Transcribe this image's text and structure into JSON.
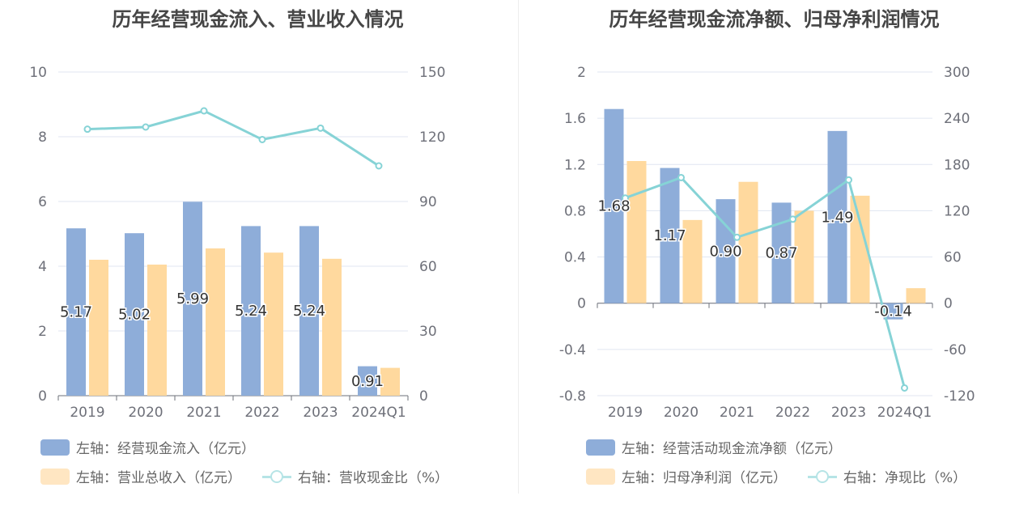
{
  "colors": {
    "bar_primary": "#8eadd9",
    "bar_secondary": "#ffd99e",
    "line": "#86d3d6",
    "axis_text": "#6e7079",
    "grid": "#e0e6f1"
  },
  "left": {
    "title": "历年经营现金流入、营业收入情况",
    "legend": {
      "bar1": "左轴：经营现金流入（亿元）",
      "bar2": "左轴：营业总收入（亿元）",
      "line": "右轴：营收现金比（%）"
    }
  },
  "right": {
    "title": "历年经营现金流净额、归母净利润情况",
    "legend": {
      "bar1": "左轴：经营活动现金流净额（亿元）",
      "bar2": "左轴：归母净利润（亿元）",
      "line": "右轴：净现比（%）"
    }
  },
  "chart_data": [
    {
      "type": "bar",
      "title": "历年经营现金流入、营业收入情况",
      "categories": [
        "2019",
        "2020",
        "2021",
        "2022",
        "2023",
        "2024Q1"
      ],
      "y_left": {
        "min": 0,
        "max": 10,
        "ticks": [
          "0",
          "2",
          "4",
          "6",
          "8",
          "10"
        ]
      },
      "y_right": {
        "min": 0,
        "max": 150,
        "ticks": [
          "0",
          "30",
          "60",
          "90",
          "120",
          "150"
        ]
      },
      "series": [
        {
          "name": "左轴：经营现金流入（亿元）",
          "axis": "left",
          "kind": "bar",
          "values": [
            5.17,
            5.02,
            5.99,
            5.24,
            5.24,
            0.91
          ],
          "labels": [
            "5.17",
            "5.02",
            "5.99",
            "5.24",
            "5.24",
            "0.91"
          ]
        },
        {
          "name": "左轴：营业总收入（亿元）",
          "axis": "left",
          "kind": "bar",
          "values": [
            4.2,
            4.05,
            4.55,
            4.42,
            4.23,
            0.86
          ]
        },
        {
          "name": "右轴：营收现金比（%）",
          "axis": "right",
          "kind": "line",
          "values": [
            123.5,
            124.5,
            132.0,
            118.7,
            124.0,
            106.5
          ]
        }
      ]
    },
    {
      "type": "bar",
      "title": "历年经营现金流净额、归母净利润情况",
      "categories": [
        "2019",
        "2020",
        "2021",
        "2022",
        "2023",
        "2024Q1"
      ],
      "y_left": {
        "min": -0.8,
        "max": 2,
        "ticks": [
          "-0.8",
          "-0.4",
          "0",
          "0.4",
          "0.8",
          "1.2",
          "1.6",
          "2"
        ]
      },
      "y_right": {
        "min": -120,
        "max": 300,
        "ticks": [
          "-120",
          "-60",
          "0",
          "60",
          "120",
          "180",
          "240",
          "300"
        ]
      },
      "series": [
        {
          "name": "左轴：经营活动现金流净额（亿元）",
          "axis": "left",
          "kind": "bar",
          "values": [
            1.68,
            1.17,
            0.9,
            0.87,
            1.49,
            -0.14
          ],
          "labels": [
            "1.68",
            "1.17",
            "0.90",
            "0.87",
            "1.49",
            "-0.14"
          ]
        },
        {
          "name": "左轴：归母净利润（亿元）",
          "axis": "left",
          "kind": "bar",
          "values": [
            1.23,
            0.72,
            1.05,
            0.8,
            0.93,
            0.13
          ]
        },
        {
          "name": "右轴：净现比（%）",
          "axis": "right",
          "kind": "line",
          "values": [
            136.5,
            163.0,
            85.5,
            109.0,
            160.0,
            -110.0
          ]
        }
      ]
    }
  ]
}
